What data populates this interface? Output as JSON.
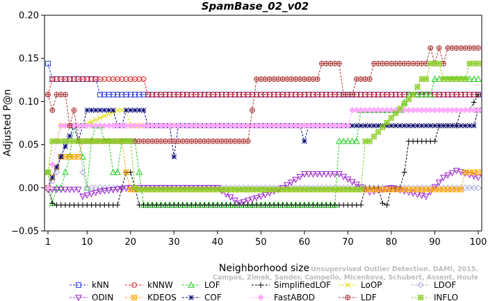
{
  "chart_data": {
    "type": "line",
    "title": "SpamBase_02_v02",
    "xlabel": "Neighborhood size",
    "ylabel": "Adjusted P@n",
    "xlim": [
      1,
      100
    ],
    "ylim": [
      -0.05,
      0.2
    ],
    "x_ticks": [
      1,
      10,
      20,
      30,
      40,
      50,
      60,
      70,
      80,
      90,
      100
    ],
    "y_ticks": [
      -0.05,
      0.0,
      0.05,
      0.1,
      0.15,
      0.2
    ],
    "y_tick_labels": [
      "−0.05",
      "0.00",
      "0.05",
      "0.10",
      "0.15",
      "0.20"
    ],
    "grid": false,
    "legend_placement": "bottom",
    "credit": [
      "Unsupervised Outlier Detection. DAMI, 2015.",
      "Campos, Zimek, Sander, Campello, Micenkova, Schubert, Assent, Houle"
    ],
    "series": [
      {
        "name": "kNN",
        "color": "#2233cc",
        "marker": "square",
        "segments": [
          [
            1,
            0.144
          ],
          [
            2,
            0.126
          ],
          [
            12,
            0.126
          ],
          [
            13,
            0.108
          ],
          [
            100,
            0.108
          ]
        ]
      },
      {
        "name": "kNNW",
        "color": "#dd2222",
        "marker": "circle",
        "segments": [
          [
            1,
            0.108
          ],
          [
            2,
            0.126
          ],
          [
            23,
            0.126
          ],
          [
            24,
            0.108
          ],
          [
            100,
            0.108
          ]
        ]
      },
      {
        "name": "LOF",
        "color": "#22cc22",
        "marker": "triangle-up",
        "segments": [
          [
            1,
            0.018
          ],
          [
            2,
            -0.018
          ],
          [
            3,
            0.0
          ],
          [
            4,
            0.0
          ],
          [
            5,
            0.018
          ],
          [
            6,
            0.036
          ],
          [
            7,
            0.072
          ],
          [
            8,
            0.054
          ],
          [
            9,
            0.036
          ],
          [
            10,
            0.0
          ],
          [
            11,
            0.054
          ],
          [
            12,
            0.072
          ],
          [
            13,
            0.072
          ],
          [
            14,
            0.054
          ],
          [
            15,
            0.054
          ],
          [
            16,
            0.018
          ],
          [
            17,
            0.018
          ],
          [
            18,
            0.054
          ],
          [
            19,
            0.054
          ],
          [
            20,
            0.054
          ],
          [
            21,
            0.054
          ],
          [
            22,
            0.018
          ],
          [
            23,
            -0.02
          ],
          [
            67,
            -0.02
          ],
          [
            68,
            0.054
          ],
          [
            72,
            0.054
          ],
          [
            73,
            0.09
          ],
          [
            82,
            0.09
          ],
          [
            84,
            0.108
          ],
          [
            89,
            0.108
          ],
          [
            90,
            0.126
          ],
          [
            100,
            0.126
          ]
        ]
      },
      {
        "name": "SimplifiedLOF",
        "color": "#000000",
        "marker": "plus",
        "segments": [
          [
            1,
            0.0
          ],
          [
            2,
            -0.018
          ],
          [
            3,
            -0.02
          ],
          [
            17,
            -0.02
          ],
          [
            18,
            0.0
          ],
          [
            19,
            0.018
          ],
          [
            20,
            0.018
          ],
          [
            21,
            0.0
          ],
          [
            22,
            -0.02
          ],
          [
            73,
            -0.02
          ],
          [
            74,
            0.0
          ],
          [
            77,
            0.0
          ],
          [
            78,
            -0.018
          ],
          [
            79,
            -0.02
          ],
          [
            80,
            0.0
          ],
          [
            82,
            0.0
          ],
          [
            83,
            0.018
          ],
          [
            84,
            0.054
          ],
          [
            90,
            0.054
          ],
          [
            91,
            0.072
          ],
          [
            95,
            0.072
          ],
          [
            96,
            0.09
          ],
          [
            98,
            0.09
          ],
          [
            100,
            0.108
          ]
        ]
      },
      {
        "name": "LoOP",
        "color": "#dddd00",
        "marker": "x",
        "segments": [
          [
            1,
            0.018
          ],
          [
            2,
            0.054
          ],
          [
            3,
            0.054
          ],
          [
            4,
            0.072
          ],
          [
            8,
            0.072
          ],
          [
            9,
            0.072
          ],
          [
            17,
            0.09
          ],
          [
            19,
            0.09
          ],
          [
            20,
            0.072
          ],
          [
            99,
            0.072
          ],
          [
            100,
            0.09
          ]
        ]
      },
      {
        "name": "LDOF",
        "color": "#aaaadd",
        "marker": "diamond",
        "segments": [
          [
            1,
            -0.002
          ],
          [
            3,
            0.018
          ],
          [
            4,
            0.036
          ],
          [
            5,
            0.054
          ],
          [
            6,
            0.072
          ],
          [
            8,
            0.072
          ],
          [
            9,
            0.018
          ],
          [
            10,
            0.0
          ],
          [
            100,
            0.0
          ]
        ]
      },
      {
        "name": "ODIN",
        "color": "#9922cc",
        "marker": "triangle-down",
        "segments": [
          [
            1,
            -0.002
          ],
          [
            8,
            -0.002
          ],
          [
            9,
            -0.01
          ],
          [
            13,
            -0.004
          ],
          [
            20,
            0.0
          ],
          [
            40,
            0.0
          ],
          [
            45,
            -0.018
          ],
          [
            50,
            -0.01
          ],
          [
            55,
            0.0
          ],
          [
            60,
            0.016
          ],
          [
            68,
            0.016
          ],
          [
            75,
            -0.005
          ],
          [
            80,
            0.0
          ],
          [
            88,
            -0.01
          ],
          [
            92,
            0.012
          ],
          [
            95,
            0.02
          ],
          [
            100,
            0.012
          ]
        ]
      },
      {
        "name": "KDEOS",
        "color": "#ffa500",
        "marker": "square-x",
        "segments": [
          [
            1,
            0.0
          ],
          [
            4,
            0.036
          ],
          [
            8,
            0.036
          ],
          [
            9,
            0.054
          ],
          [
            18,
            0.054
          ],
          [
            19,
            0.018
          ],
          [
            20,
            -0.002
          ],
          [
            96,
            -0.002
          ],
          [
            97,
            0.018
          ],
          [
            100,
            0.018
          ]
        ]
      },
      {
        "name": "COF",
        "color": "#000077",
        "marker": "star",
        "segments": [
          [
            1,
            0.0
          ],
          [
            7,
            0.072
          ],
          [
            8,
            0.054
          ],
          [
            9,
            0.072
          ],
          [
            10,
            0.09
          ],
          [
            16,
            0.09
          ],
          [
            17,
            0.072
          ],
          [
            18,
            0.072
          ],
          [
            19,
            0.09
          ],
          [
            23,
            0.09
          ],
          [
            24,
            0.072
          ],
          [
            29,
            0.072
          ],
          [
            30,
            0.036
          ],
          [
            31,
            0.072
          ],
          [
            59,
            0.072
          ],
          [
            60,
            0.054
          ],
          [
            61,
            0.072
          ],
          [
            99,
            0.072
          ],
          [
            100,
            0.09
          ]
        ]
      },
      {
        "name": "FastABOD",
        "color": "#ffaaff",
        "marker": "diamond-filled",
        "segments": [
          [
            1,
            0.0
          ],
          [
            3,
            0.054
          ],
          [
            4,
            0.072
          ],
          [
            70,
            0.072
          ],
          [
            71,
            0.09
          ],
          [
            88,
            0.09
          ],
          [
            90,
            0.09
          ],
          [
            100,
            0.09
          ]
        ]
      },
      {
        "name": "LDF",
        "color": "#aa3333",
        "marker": "circle-plus",
        "segments": [
          [
            1,
            0.108
          ],
          [
            2,
            0.09
          ],
          [
            3,
            0.108
          ],
          [
            4,
            0.108
          ],
          [
            5,
            0.108
          ],
          [
            6,
            0.072
          ],
          [
            7,
            0.09
          ],
          [
            8,
            0.054
          ],
          [
            23,
            0.054
          ],
          [
            24,
            0.054
          ],
          [
            47,
            0.054
          ],
          [
            48,
            0.09
          ],
          [
            49,
            0.126
          ],
          [
            63,
            0.126
          ],
          [
            64,
            0.144
          ],
          [
            68,
            0.144
          ],
          [
            69,
            0.108
          ],
          [
            71,
            0.108
          ],
          [
            72,
            0.126
          ],
          [
            75,
            0.126
          ],
          [
            76,
            0.144
          ],
          [
            88,
            0.144
          ],
          [
            89,
            0.162
          ],
          [
            90,
            0.144
          ],
          [
            91,
            0.162
          ],
          [
            92,
            0.144
          ],
          [
            93,
            0.162
          ],
          [
            100,
            0.162
          ]
        ]
      },
      {
        "name": "INFLO",
        "color": "#88cc22",
        "marker": "square-star",
        "segments": [
          [
            1,
            0.018
          ],
          [
            2,
            0.054
          ],
          [
            8,
            0.054
          ],
          [
            9,
            0.054
          ],
          [
            10,
            0.054
          ],
          [
            17,
            0.054
          ],
          [
            18,
            0.054
          ],
          [
            19,
            0.054
          ],
          [
            20,
            0.054
          ],
          [
            21,
            0.0
          ],
          [
            22,
            -0.002
          ],
          [
            73,
            -0.002
          ],
          [
            74,
            0.054
          ],
          [
            75,
            0.054
          ],
          [
            85,
            0.108
          ],
          [
            87,
            0.126
          ],
          [
            88,
            0.126
          ],
          [
            89,
            0.144
          ],
          [
            91,
            0.144
          ],
          [
            92,
            0.126
          ],
          [
            97,
            0.126
          ],
          [
            98,
            0.144
          ],
          [
            100,
            0.144
          ]
        ]
      }
    ]
  }
}
